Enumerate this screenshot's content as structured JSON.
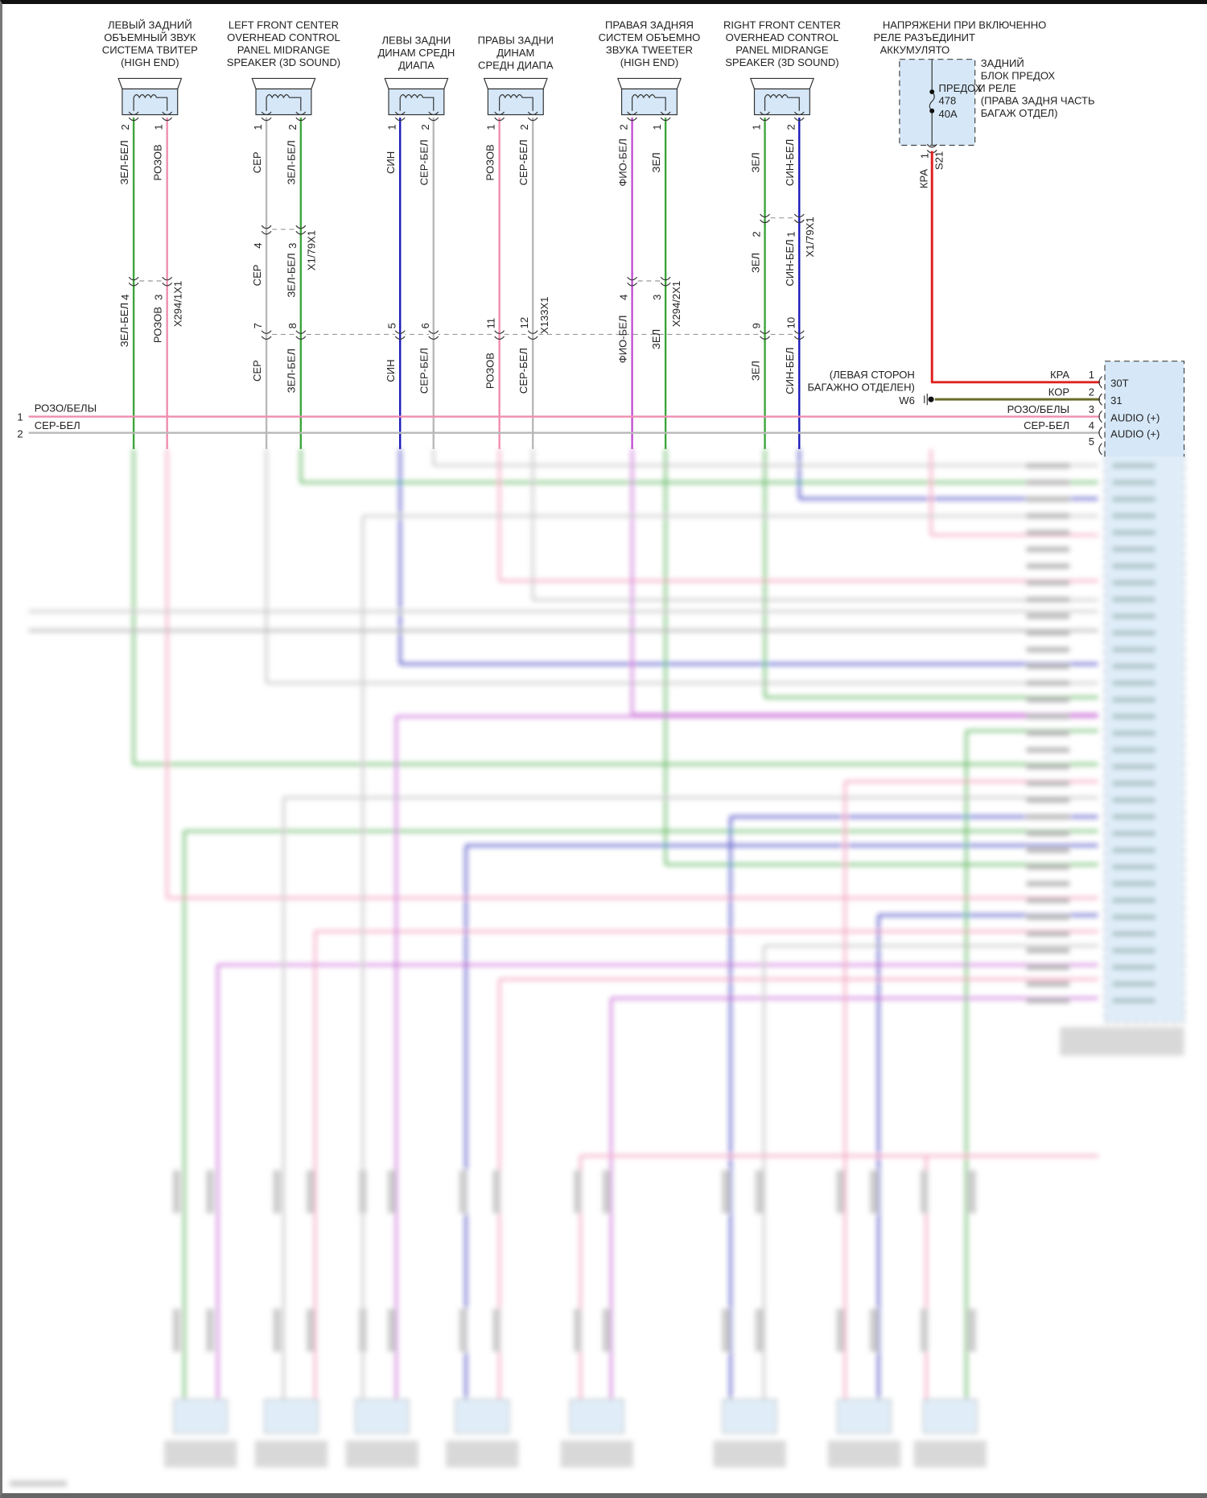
{
  "wire_colors": {
    "green": "#3aa53a",
    "pink": "#f08cb0",
    "gray": "#b8b8b8",
    "blue": "#1a1ab8",
    "violet": "#c050d0",
    "red": "#e02020",
    "olive": "#6b6b2a",
    "module_fill": "#d6e8f8"
  },
  "speakers": [
    {
      "title": [
        "ЛЕВЫЙ ЗАДНИЙ",
        "ОБЪЕМНЫЙ ЗВУК",
        "СИСТЕМА ТВИТЕР",
        "(HIGH END)"
      ],
      "wires": [
        {
          "pin": "2",
          "color": "ЗЕЛ-БЕЛ"
        },
        {
          "pin": "1",
          "color": "РОЗОВ"
        }
      ]
    },
    {
      "title": [
        "LEFT FRONT CENTER",
        "OVERHEAD CONTROL",
        "PANEL MIDRANGE",
        "SPEAKER (3D SOUND)"
      ],
      "wires": [
        {
          "pin": "1",
          "color": "СЕР"
        },
        {
          "pin": "2",
          "color": "ЗЕЛ-БЕЛ"
        }
      ]
    },
    {
      "title": [
        "ЛЕВЫ ЗАДНИ",
        "ДИНАМ СРЕДН",
        "ДИАПА"
      ],
      "wires": [
        {
          "pin": "1",
          "color": "СИН"
        },
        {
          "pin": "2",
          "color": "СЕР-БЕЛ"
        }
      ]
    },
    {
      "title": [
        "ПРАВЫ ЗАДНИ",
        "ДИНАМ",
        "СРЕДН ДИАПА"
      ],
      "wires": [
        {
          "pin": "1",
          "color": "РОЗОВ"
        },
        {
          "pin": "2",
          "color": "СЕР-БЕЛ"
        }
      ]
    },
    {
      "title": [
        "ПРАВАЯ ЗАДНЯЯ",
        "СИСТЕМ ОБЪЕМНО",
        "ЗВУКА TWEETER",
        "(HIGH END)"
      ],
      "wires": [
        {
          "pin": "2",
          "color": "ФИО-БЕЛ"
        },
        {
          "pin": "1",
          "color": "ЗЕЛ"
        }
      ]
    },
    {
      "title": [
        "RIGHT FRONT CENTER",
        "OVERHEAD CONTROL",
        "PANEL MIDRANGE",
        "SPEAKER (3D SOUND)"
      ],
      "wires": [
        {
          "pin": "1",
          "color": "ЗЕЛ"
        },
        {
          "pin": "2",
          "color": "СИН-БЕЛ"
        }
      ]
    }
  ],
  "connectors": [
    {
      "name": "X294/1X1",
      "pins": [
        "4",
        "3"
      ],
      "lower_labels": [
        "ЗЕЛ-БЕЛ",
        "РОЗОВ"
      ]
    },
    {
      "name": "X1/79X1",
      "pins": [
        "4",
        "3"
      ],
      "lower_labels": [
        "СЕР",
        "ЗЕЛ-БЕЛ"
      ]
    },
    {
      "name": "X133X1",
      "pins": [
        "7",
        "8",
        "5",
        "6",
        "11",
        "12",
        "9",
        "10"
      ],
      "lower_labels": [
        "СЕР",
        "ЗЕЛ-БЕЛ",
        "СИН",
        "СЕР-БЕЛ",
        "РОЗОВ",
        "СЕР-БЕЛ",
        "ЗЕЛ",
        "СИН-БЕЛ"
      ]
    },
    {
      "name": "X294/2X1",
      "pins": [
        "4",
        "3"
      ],
      "lower_labels": [
        "ФИО-БЕЛ",
        "ЗЕЛ"
      ]
    },
    {
      "name": "X1/79X1",
      "pins": [
        "2",
        "1"
      ],
      "lower_labels": [
        "ЗЕЛ",
        "СИН-БЕЛ"
      ]
    }
  ],
  "fuse_block": {
    "header": [
      "НАПРЯЖЕНИ ПРИ ВКЛЮЧЕННО",
      "РЕЛЕ РАЗЪЕДИНИТ",
      "АККУМУЛЯТО"
    ],
    "fuse_label": "ПРЕДОХ",
    "fuse_number": "478",
    "fuse_rating": "40A",
    "block_label": [
      "ЗАДНИЙ",
      "БЛОК ПРЕДОХ",
      "И РЕЛЕ",
      "(ПРАВА ЗАДНЯ ЧАСТЬ",
      "БАГАЖ ОТДЕЛ)"
    ],
    "pin": "1",
    "splice": "S21",
    "wire": "КРА"
  },
  "ground": {
    "label": [
      "(ЛЕВАЯ СТОРОН",
      "БАГАЖНО ОТДЕЛЕН)"
    ],
    "id": "W6"
  },
  "left_lines": [
    {
      "num": "1",
      "label": "РОЗО/БЕЛЫ"
    },
    {
      "num": "2",
      "label": "СЕР-БЕЛ"
    }
  ],
  "module": {
    "pins": [
      {
        "num": "1",
        "wire": "КРА",
        "name": "30T"
      },
      {
        "num": "2",
        "wire": "КОР",
        "name": "31"
      },
      {
        "num": "3",
        "wire": "РОЗО/БЕЛЫ",
        "name": "AUDIO (+)"
      },
      {
        "num": "4",
        "wire": "СЕР-БЕЛ",
        "name": "AUDIO (+)"
      },
      {
        "num": "5",
        "wire": "",
        "name": ""
      }
    ]
  }
}
